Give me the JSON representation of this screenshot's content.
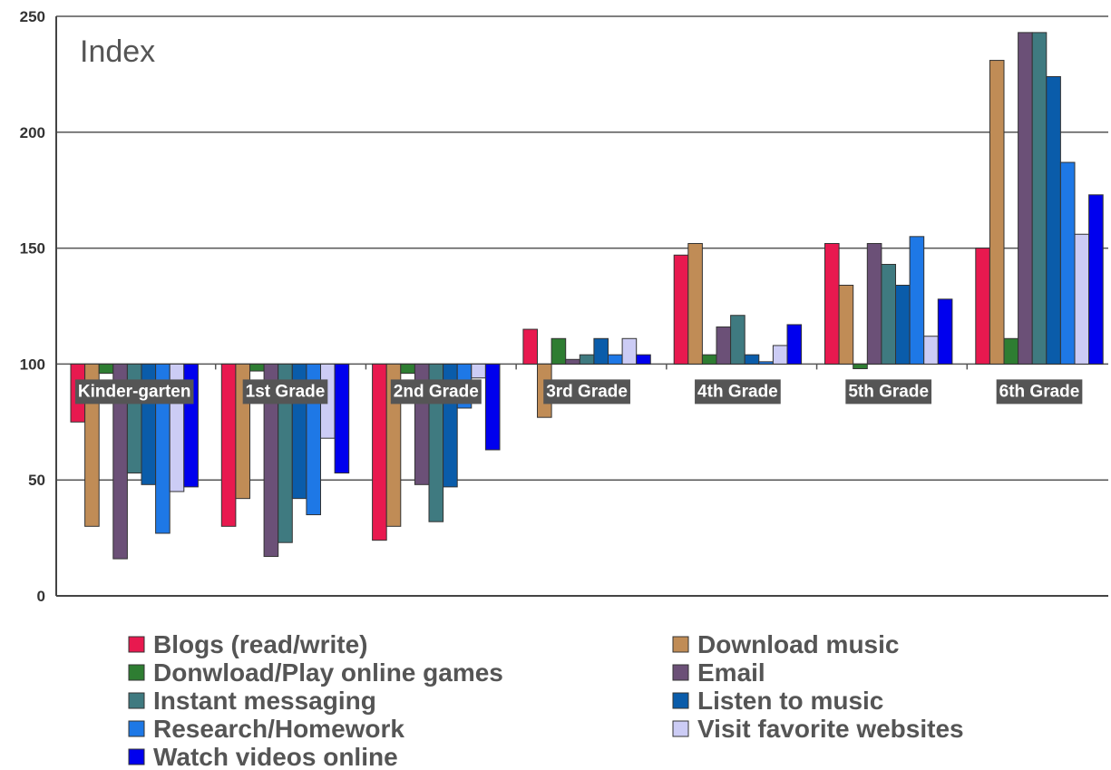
{
  "chart_data": {
    "type": "bar",
    "title": "Index",
    "xlabel": "",
    "ylabel": "",
    "ylim": [
      0,
      250
    ],
    "yticks": [
      0,
      50,
      100,
      150,
      200,
      250
    ],
    "baseline": 100,
    "grid": true,
    "legend_position": "bottom",
    "categories": [
      "Kinder-garten",
      "1st Grade",
      "2nd Grade",
      "3rd Grade",
      "4th Grade",
      "5th Grade",
      "6th Grade"
    ],
    "series": [
      {
        "name": "Blogs (read/write)",
        "color": "#e8194f",
        "values": [
          75,
          30,
          24,
          115,
          147,
          152,
          150
        ]
      },
      {
        "name": "Download music",
        "color": "#c08c56",
        "values": [
          30,
          42,
          30,
          77,
          152,
          134,
          231
        ]
      },
      {
        "name": "Donwload/Play online games",
        "color": "#2e7d32",
        "values": [
          96,
          97,
          96,
          111,
          104,
          98,
          111
        ]
      },
      {
        "name": "Email",
        "color": "#6b5077",
        "values": [
          16,
          17,
          48,
          102,
          116,
          152,
          243
        ]
      },
      {
        "name": "Instant messaging",
        "color": "#3f7a80",
        "values": [
          53,
          23,
          32,
          104,
          121,
          143,
          243
        ]
      },
      {
        "name": "Listen to music",
        "color": "#0a5caa",
        "values": [
          48,
          42,
          47,
          111,
          104,
          134,
          224
        ]
      },
      {
        "name": "Research/Homework",
        "color": "#1e78e6",
        "values": [
          27,
          35,
          81,
          104,
          101,
          155,
          187
        ]
      },
      {
        "name": "Visit favorite websites",
        "color": "#ccccf5",
        "values": [
          45,
          68,
          94,
          111,
          108,
          112,
          156
        ]
      },
      {
        "name": "Watch videos online",
        "color": "#0000ee",
        "values": [
          47,
          53,
          63,
          104,
          117,
          128,
          173
        ]
      }
    ]
  }
}
